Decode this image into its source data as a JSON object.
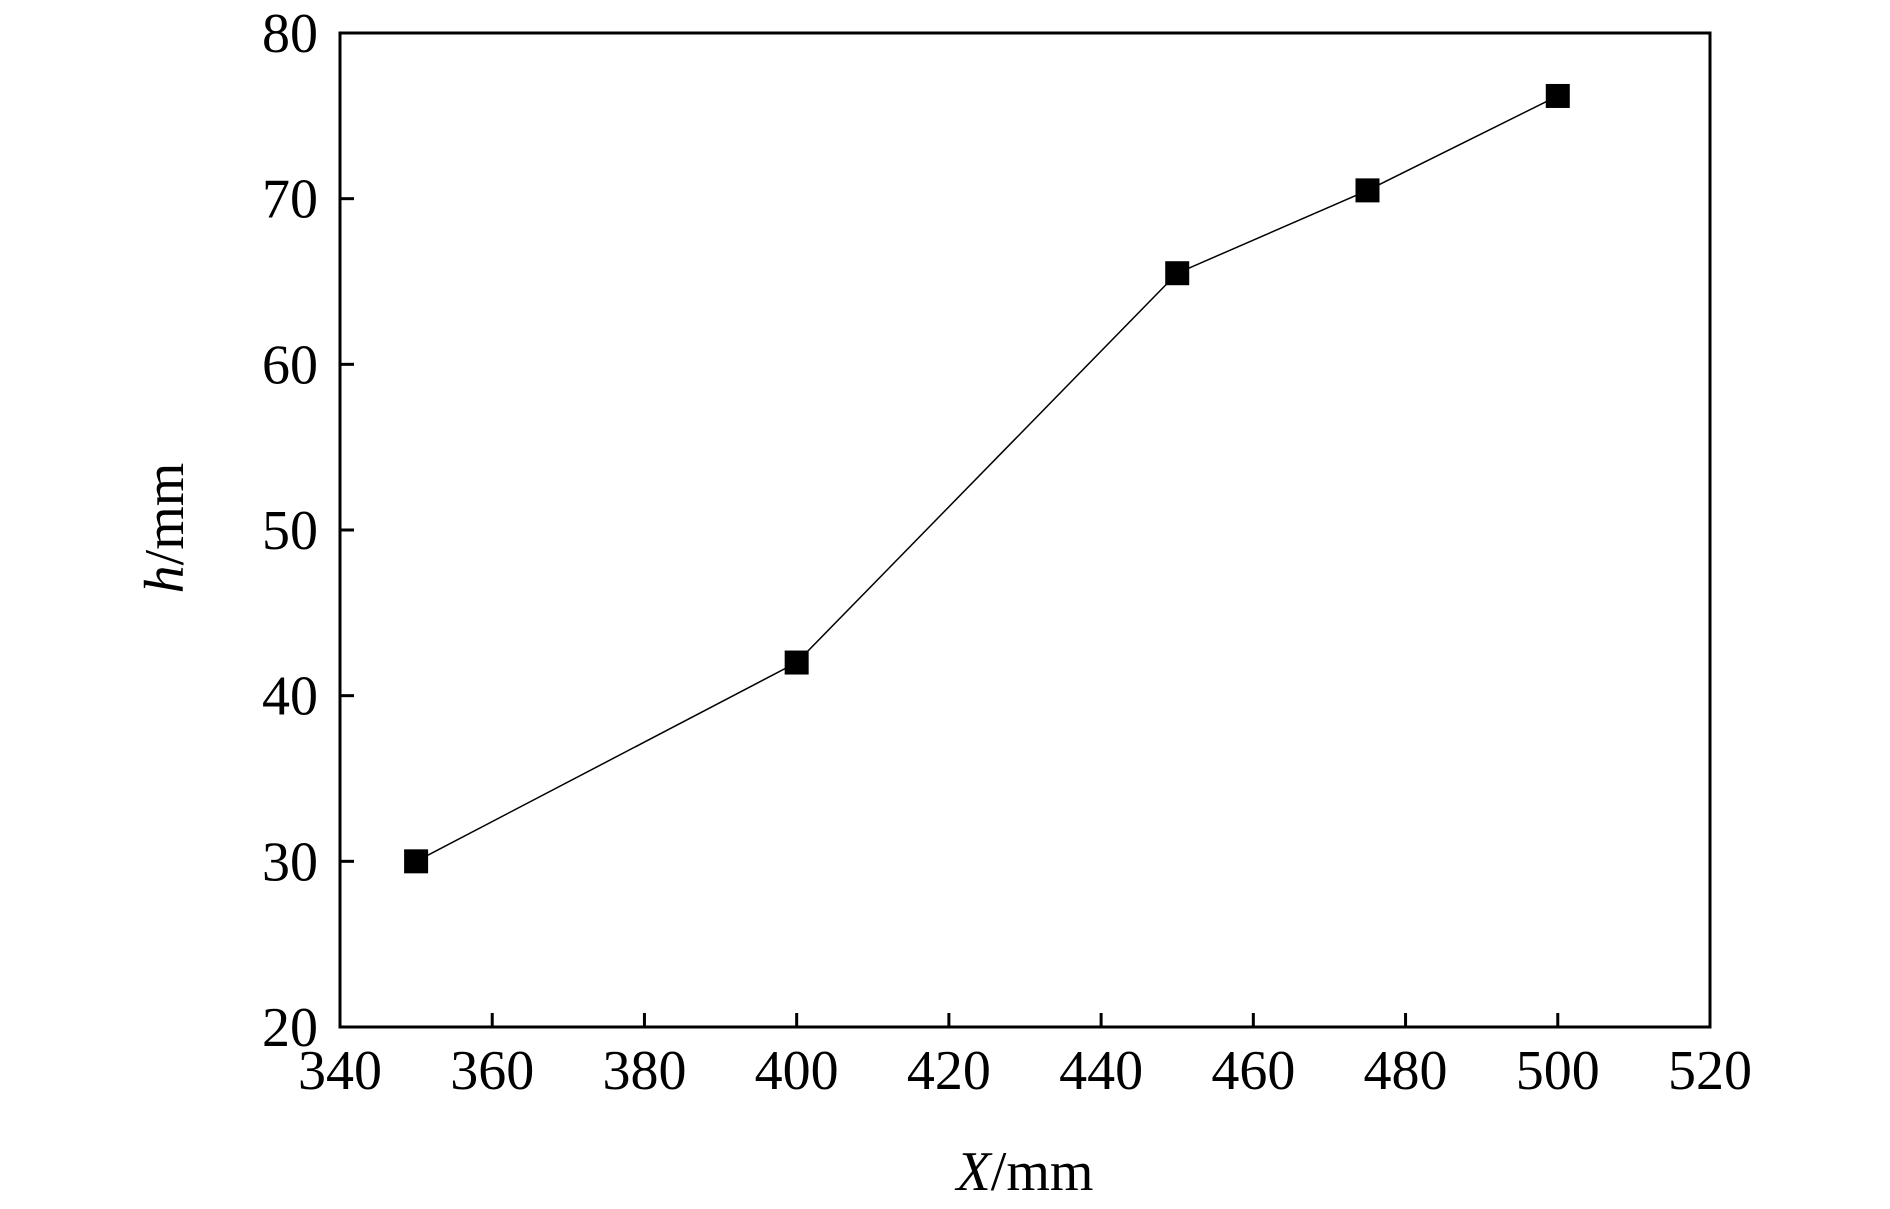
{
  "chart_data": {
    "type": "line",
    "xlabel": {
      "var": "X",
      "unit": "/mm"
    },
    "ylabel": {
      "var": "h",
      "unit": "/mm"
    },
    "xlim": [
      340,
      520
    ],
    "ylim": [
      20,
      80
    ],
    "xticks": [
      340,
      360,
      380,
      400,
      420,
      440,
      460,
      480,
      500,
      520
    ],
    "yticks": [
      20,
      30,
      40,
      50,
      60,
      70,
      80
    ],
    "grid": false,
    "legend": "none",
    "series": [
      {
        "x": [
          350,
          400,
          450,
          475,
          500
        ],
        "y": [
          30.0,
          42.0,
          65.5,
          70.5,
          76.2
        ],
        "marker": "square",
        "color": "#000000"
      }
    ]
  }
}
